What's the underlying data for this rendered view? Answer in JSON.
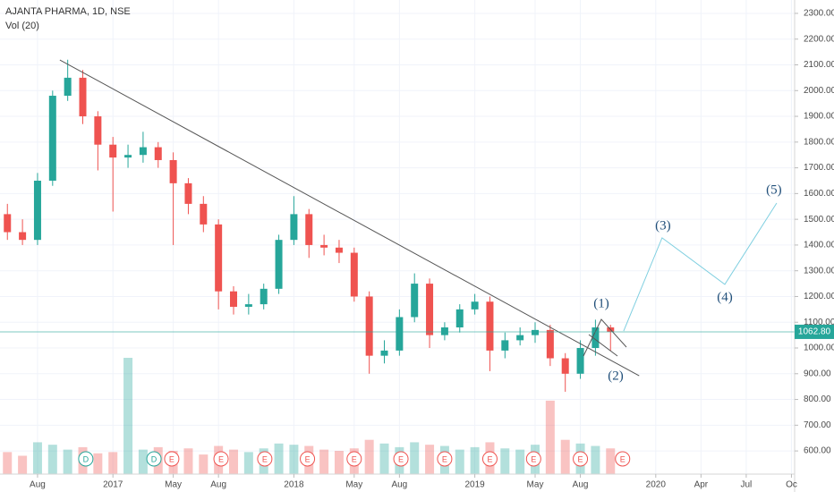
{
  "chart_data": {
    "type": "candlestick",
    "title": "AJANTA PHARMA, 1D, NSE",
    "subtitle": "Vol (20)",
    "x": [
      -2,
      -1,
      0,
      1,
      2,
      3,
      4,
      5,
      6,
      7,
      8,
      9,
      10,
      11,
      12,
      13,
      14,
      15,
      16,
      17,
      18,
      19,
      20,
      21,
      22,
      23,
      24,
      25,
      26,
      27,
      28,
      29,
      30,
      31,
      32,
      33,
      34,
      35,
      36,
      37,
      38
    ],
    "open": [
      1520,
      1450,
      1420,
      1650,
      1980,
      2050,
      1900,
      1790,
      1740,
      1750,
      1780,
      1730,
      1640,
      1560,
      1480,
      1220,
      1160,
      1170,
      1230,
      1420,
      1520,
      1400,
      1390,
      1370,
      1200,
      970,
      990,
      1120,
      1250,
      1050,
      1080,
      1150,
      1180,
      990,
      1030,
      1050,
      1070,
      960,
      900,
      1000,
      1080
    ],
    "high": [
      1560,
      1500,
      1680,
      2000,
      2120,
      2080,
      1920,
      1820,
      1790,
      1840,
      1800,
      1760,
      1660,
      1590,
      1500,
      1240,
      1210,
      1250,
      1440,
      1590,
      1540,
      1440,
      1420,
      1390,
      1220,
      1030,
      1150,
      1290,
      1270,
      1100,
      1170,
      1210,
      1200,
      1060,
      1080,
      1100,
      1090,
      980,
      1030,
      1110,
      1090
    ],
    "low": [
      1420,
      1400,
      1400,
      1630,
      1960,
      1870,
      1690,
      1530,
      1700,
      1720,
      1700,
      1400,
      1520,
      1450,
      1150,
      1130,
      1130,
      1150,
      1210,
      1400,
      1350,
      1360,
      1330,
      1180,
      900,
      940,
      970,
      1100,
      1000,
      1030,
      1060,
      1130,
      910,
      960,
      1010,
      1020,
      930,
      830,
      880,
      970,
      990
    ],
    "close": [
      1450,
      1420,
      1650,
      1980,
      2050,
      1900,
      1790,
      1740,
      1750,
      1780,
      1730,
      1640,
      1560,
      1480,
      1220,
      1160,
      1170,
      1230,
      1420,
      1520,
      1400,
      1390,
      1370,
      1200,
      970,
      990,
      1120,
      1250,
      1050,
      1080,
      1150,
      1180,
      990,
      1030,
      1050,
      1070,
      960,
      900,
      1000,
      1080,
      1063
    ],
    "volume": [
      180,
      150,
      260,
      240,
      200,
      220,
      170,
      180,
      950,
      200,
      220,
      190,
      210,
      160,
      230,
      200,
      180,
      210,
      250,
      240,
      230,
      200,
      190,
      210,
      280,
      250,
      220,
      260,
      240,
      230,
      200,
      220,
      260,
      210,
      200,
      240,
      600,
      280,
      250,
      230,
      210
    ],
    "up_color": "#26a69a",
    "down_color": "#ef5350",
    "xlim": [
      -2.49,
      50.21
    ],
    "ylim": [
      510,
      2352
    ],
    "xticks": [
      {
        "value": 0,
        "label": "Aug"
      },
      {
        "value": 5,
        "label": "2017"
      },
      {
        "value": 9,
        "label": "May"
      },
      {
        "value": 12,
        "label": "Aug"
      },
      {
        "value": 17,
        "label": "2018"
      },
      {
        "value": 21,
        "label": "May"
      },
      {
        "value": 24,
        "label": "Aug"
      },
      {
        "value": 29,
        "label": "2019"
      },
      {
        "value": 33,
        "label": "May"
      },
      {
        "value": 36,
        "label": "Aug"
      },
      {
        "value": 41,
        "label": "2020"
      },
      {
        "value": 44,
        "label": "Apr"
      },
      {
        "value": 47,
        "label": "Jul"
      },
      {
        "value": 50,
        "label": "Oc"
      }
    ],
    "yticks": [
      {
        "value": 600,
        "label": "600.00"
      },
      {
        "value": 700,
        "label": "700.00"
      },
      {
        "value": 800,
        "label": "800.00"
      },
      {
        "value": 900,
        "label": "900.00"
      },
      {
        "value": 1000,
        "label": "1000.00"
      },
      {
        "value": 1100,
        "label": "1100.00"
      },
      {
        "value": 1200,
        "label": "1200.00"
      },
      {
        "value": 1300,
        "label": "1300.00"
      },
      {
        "value": 1400,
        "label": "1400.00"
      },
      {
        "value": 1500,
        "label": "1500.00"
      },
      {
        "value": 1600,
        "label": "1600.00"
      },
      {
        "value": 1700,
        "label": "1700.00"
      },
      {
        "value": 1800,
        "label": "1800.00"
      },
      {
        "value": 1900,
        "label": "1900.00"
      },
      {
        "value": 2000,
        "label": "2000.00"
      },
      {
        "value": 2100,
        "label": "2100.00"
      },
      {
        "value": 2200,
        "label": "2200.00"
      },
      {
        "value": 2300,
        "label": "2300.00"
      }
    ],
    "grid": true,
    "last_price": {
      "value": 1062.8,
      "label": "1062.80",
      "color": "#26a69a"
    },
    "trendline": {
      "x": [
        1.48,
        39.9
      ],
      "y": [
        2119,
        892
      ],
      "color": "#555555"
    },
    "projection": {
      "x": [
        38.87,
        41.42,
        45.58,
        49.02
      ],
      "y": [
        1066,
        1428,
        1247,
        1563
      ],
      "color": "#7fcfe0"
    },
    "annotations": [
      {
        "label": "(1)",
        "x": 37.39,
        "y": 1170
      },
      {
        "label": "(2)",
        "x": 38.34,
        "y": 889
      },
      {
        "label": "(3)",
        "x": 41.48,
        "y": 1473
      },
      {
        "label": "(4)",
        "x": 45.58,
        "y": 1195
      },
      {
        "label": "(5)",
        "x": 48.84,
        "y": 1612
      }
    ],
    "event_colors": {
      "D": "#26a69a",
      "E": "#ef5350"
    },
    "events": [
      {
        "x": 3.2,
        "label": "D"
      },
      {
        "x": 7.72,
        "label": "D"
      },
      {
        "x": 8.9,
        "label": "E"
      },
      {
        "x": 12.17,
        "label": "E"
      },
      {
        "x": 15.07,
        "label": "E"
      },
      {
        "x": 17.9,
        "label": "E"
      },
      {
        "x": 21.0,
        "label": "E"
      },
      {
        "x": 24.1,
        "label": "E"
      },
      {
        "x": 27.0,
        "label": "E"
      },
      {
        "x": 30.0,
        "label": "E"
      },
      {
        "x": 32.9,
        "label": "E"
      },
      {
        "x": 36.0,
        "label": "E"
      },
      {
        "x": 38.8,
        "label": "E"
      }
    ]
  }
}
